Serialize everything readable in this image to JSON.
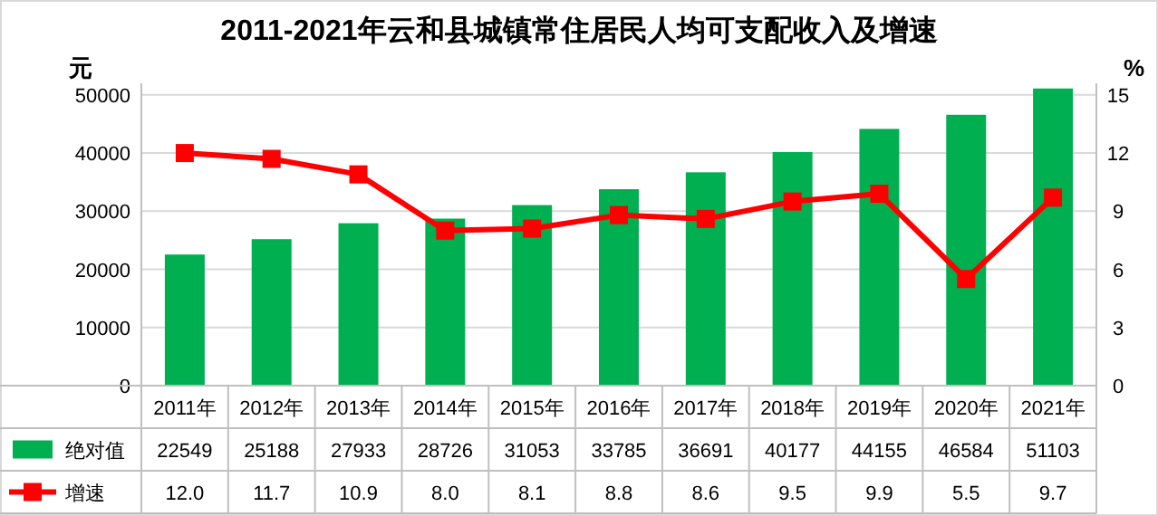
{
  "chart_data": {
    "type": "bar",
    "title": "2011-2021年云和县城镇常住居民人均可支配收入及增速",
    "ylabel": "元",
    "y2label": "%",
    "categories": [
      "2011年",
      "2012年",
      "2013年",
      "2014年",
      "2015年",
      "2016年",
      "2017年",
      "2018年",
      "2019年",
      "2020年",
      "2021年"
    ],
    "series": [
      {
        "name": "绝对值",
        "color": "#00b050",
        "values": [
          22549,
          25188,
          27933,
          28726,
          31053,
          33785,
          36691,
          40177,
          44155,
          46584,
          51103
        ],
        "value_labels": [
          "22549",
          "25188",
          "27933",
          "28726",
          "31053",
          "33785",
          "36691",
          "40177",
          "44155",
          "46584",
          "51103"
        ]
      },
      {
        "name": "增速",
        "type": "line",
        "axis": "y2",
        "color": "#ff0000",
        "values": [
          12.0,
          11.7,
          10.9,
          8.0,
          8.1,
          8.8,
          8.6,
          9.5,
          9.9,
          5.5,
          9.7
        ],
        "value_labels": [
          "12.0",
          "11.7",
          "10.9",
          "8.0",
          "8.1",
          "8.8",
          "8.6",
          "9.5",
          "9.9",
          "5.5",
          "9.7"
        ]
      }
    ],
    "ylim": [
      0,
      52000
    ],
    "yticks": [
      0,
      10000,
      20000,
      30000,
      40000,
      50000
    ],
    "y2lim": [
      0,
      15.6
    ],
    "y2ticks": [
      0,
      3,
      6,
      9,
      12,
      15
    ],
    "grid": "y",
    "marker": "square",
    "legend": "bottom left"
  }
}
